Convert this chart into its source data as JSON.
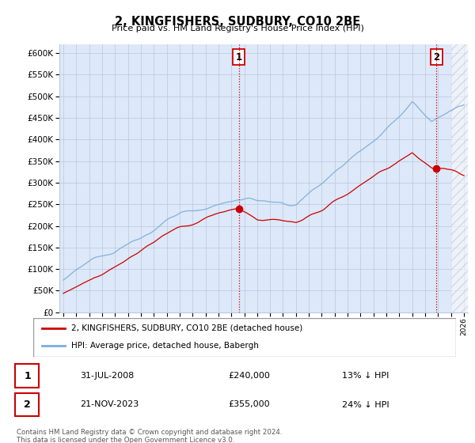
{
  "title": "2, KINGFISHERS, SUDBURY, CO10 2BE",
  "subtitle": "Price paid vs. HM Land Registry's House Price Index (HPI)",
  "ylim": [
    0,
    620000
  ],
  "yticks": [
    0,
    50000,
    100000,
    150000,
    200000,
    250000,
    300000,
    350000,
    400000,
    450000,
    500000,
    550000,
    600000
  ],
  "sale1_date_idx": 13.58,
  "sale1_price": 240000,
  "sale1_label": "1",
  "sale1_date_str": "31-JUL-2008",
  "sale1_amount_str": "£240,000",
  "sale1_hpi_str": "13% ↓ HPI",
  "sale2_date_idx": 28.87,
  "sale2_price": 355000,
  "sale2_label": "2",
  "sale2_date_str": "21-NOV-2023",
  "sale2_amount_str": "£355,000",
  "sale2_hpi_str": "24% ↓ HPI",
  "legend_red_label": "2, KINGFISHERS, SUDBURY, CO10 2BE (detached house)",
  "legend_blue_label": "HPI: Average price, detached house, Babergh",
  "footnote": "Contains HM Land Registry data © Crown copyright and database right 2024.\nThis data is licensed under the Open Government Licence v3.0.",
  "bg_color": "#dde8f8",
  "plot_bg": "#dde8f8",
  "red_color": "#cc0000",
  "blue_color": "#7aabdb",
  "vline_color": "#cc0000",
  "grid_color": "#b8c8e0",
  "start_year": 1995,
  "end_year": 2026,
  "n_points": 372
}
